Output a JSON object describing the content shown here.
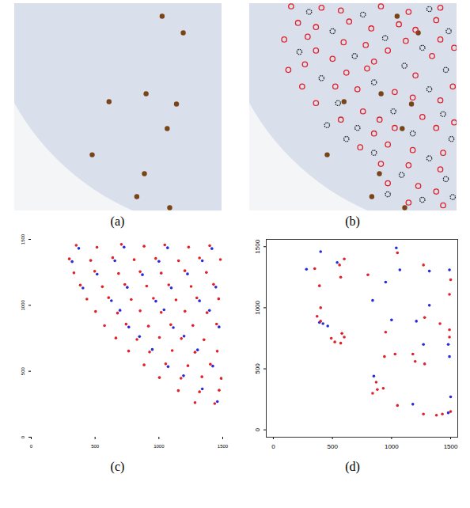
{
  "chart_data": [
    {
      "type": "scatter",
      "title": "(a)",
      "tick_labels": false,
      "xlim": [
        0,
        1500
      ],
      "ylim": [
        0,
        1500
      ],
      "series": [
        {
          "color": "#7a4419",
          "marker": "filled_circle",
          "x": [
            1067,
            1220,
            951,
            1171,
            1104,
            683,
            561,
            939,
            884,
            1122
          ],
          "y": [
            1408,
            1288,
            847,
            773,
            595,
            790,
            406,
            269,
            103,
            23
          ]
        }
      ]
    },
    {
      "type": "scatter",
      "title": "(b)",
      "tick_labels": false,
      "xlim": [
        0,
        1500
      ],
      "ylim": [
        0,
        1500
      ],
      "series": [
        {
          "color": "#7a4419",
          "marker": "filled_circle",
          "x": [
            1067,
            1220,
            951,
            1171,
            1104,
            683,
            561,
            939,
            884,
            1122
          ],
          "y": [
            1408,
            1288,
            847,
            773,
            595,
            790,
            406,
            269,
            103,
            23
          ]
        },
        {
          "color": "#222222",
          "marker": "open_circle",
          "x": [
            430,
            820,
            1300,
            1440,
            600,
            980,
            1250,
            360,
            760,
            1120,
            1420,
            520,
            900,
            1300,
            640,
            1040,
            1400,
            780,
            1180,
            1460,
            900,
            1300,
            1100,
            1420,
            1000,
            1250,
            1470,
            700,
            560
          ],
          "y": [
            1440,
            1420,
            1460,
            1300,
            1300,
            1250,
            1180,
            1150,
            1120,
            1050,
            1020,
            960,
            930,
            880,
            780,
            720,
            700,
            600,
            560,
            520,
            420,
            380,
            260,
            230,
            120,
            80,
            100,
            520,
            620
          ]
        },
        {
          "color": "#e0202a",
          "marker": "open_circle",
          "x": [
            300,
            520,
            660,
            950,
            1150,
            1380,
            350,
            480,
            720,
            880,
            1080,
            1200,
            1350,
            250,
            420,
            680,
            840,
            1130,
            1380,
            480,
            600,
            900,
            1000,
            1320,
            1480,
            280,
            400,
            700,
            850,
            1200,
            1470,
            380,
            620,
            780,
            1050,
            1180,
            1380,
            480,
            820,
            940,
            1250,
            1480,
            660,
            900,
            1050,
            1350,
            800,
            1000,
            1180,
            1400,
            950,
            1150,
            1380,
            1000,
            1220,
            1350,
            1150,
            1400
          ],
          "y": [
            1480,
            1470,
            1450,
            1480,
            1440,
            1470,
            1360,
            1330,
            1370,
            1320,
            1350,
            1310,
            1380,
            1240,
            1260,
            1220,
            1200,
            1230,
            1240,
            1160,
            1100,
            1080,
            1160,
            1120,
            1180,
            1020,
            1060,
            1000,
            1030,
            980,
            900,
            900,
            900,
            880,
            860,
            820,
            800,
            780,
            720,
            660,
            680,
            640,
            660,
            560,
            600,
            600,
            460,
            480,
            440,
            420,
            340,
            330,
            300,
            200,
            180,
            140,
            60,
            40
          ]
        }
      ]
    },
    {
      "type": "scatter",
      "title": "(c)",
      "xlim": [
        0,
        1500
      ],
      "ylim": [
        0,
        1500
      ],
      "xticks": [
        0,
        500,
        1000,
        1500
      ],
      "yticks": [
        0,
        500,
        1000,
        1500
      ],
      "series": [
        {
          "color": "#e0202a",
          "marker": "filled_circle",
          "x": [
            352,
            515,
            706,
            884,
            1046,
            1233,
            1398,
            298,
            466,
            638,
            806,
            975,
            1154,
            1318,
            1482,
            334,
            497,
            684,
            853,
            1018,
            1203,
            1372,
            384,
            557,
            733,
            904,
            1077,
            1252,
            1428,
            436,
            606,
            783,
            957,
            1134,
            1297,
            1468,
            504,
            676,
            853,
            1018,
            1204,
            1377,
            574,
            743,
            918,
            1093,
            1266,
            1452,
            663,
            828,
            1004,
            1176,
            1353,
            763,
            927,
            1104,
            1283,
            1457,
            884,
            1053,
            1227,
            1403,
            1004,
            1173,
            1337,
            1488,
            1152,
            1318,
            1472,
            1283,
            1437
          ],
          "y": [
            1455,
            1440,
            1462,
            1448,
            1458,
            1441,
            1452,
            1352,
            1340,
            1361,
            1346,
            1355,
            1338,
            1359,
            1347,
            1246,
            1258,
            1241,
            1255,
            1244,
            1262,
            1249,
            1153,
            1141,
            1158,
            1146,
            1155,
            1143,
            1159,
            1047,
            1058,
            1044,
            1053,
            1041,
            1056,
            1049,
            953,
            941,
            958,
            946,
            955,
            944,
            846,
            857,
            842,
            853,
            847,
            858,
            752,
            741,
            756,
            748,
            739,
            653,
            646,
            657,
            644,
            652,
            548,
            556,
            542,
            553,
            452,
            447,
            458,
            446,
            353,
            344,
            356,
            262,
            255
          ]
        },
        {
          "color": "#2a2ad8",
          "marker": "filled_circle",
          "x": [
            372,
            727,
            1068,
            1415,
            320,
            655,
            1000,
            1340,
            516,
            871,
            1224,
            405,
            752,
            1097,
            1446,
            628,
            976,
            1318,
            695,
            1040,
            1396,
            764,
            1113,
            1471,
            848,
            1197,
            948,
            1303,
            1072,
            1422,
            1193,
            1340,
            1458
          ],
          "y": [
            1432,
            1441,
            1436,
            1430,
            1331,
            1338,
            1333,
            1338,
            1236,
            1232,
            1238,
            1131,
            1136,
            1132,
            1138,
            1035,
            1031,
            1034,
            962,
            966,
            961,
            835,
            831,
            836,
            763,
            766,
            665,
            662,
            535,
            539,
            466,
            366,
            270
          ]
        }
      ]
    },
    {
      "type": "scatter",
      "title": "(d)",
      "xlim": [
        -60,
        1560
      ],
      "ylim": [
        -60,
        1560
      ],
      "xticks": [
        0,
        500,
        1000,
        1500
      ],
      "yticks": [
        0,
        500,
        1000,
        1500
      ],
      "series": [
        {
          "color": "#2a2ad8",
          "marker": "filled_circle",
          "x": [
            280,
            400,
            540,
            1040,
            1070,
            950,
            1320,
            1490,
            390,
            420,
            460,
            840,
            1000,
            1210,
            1320,
            1480,
            1490,
            1270,
            850,
            1180,
            1500,
            1480
          ],
          "y": [
            1315,
            1460,
            1370,
            1490,
            1310,
            1210,
            1300,
            1310,
            880,
            870,
            850,
            1060,
            900,
            890,
            1020,
            700,
            600,
            700,
            440,
            210,
            270,
            140
          ]
        },
        {
          "color": "#e0202a",
          "marker": "filled_circle",
          "x": [
            350,
            390,
            560,
            600,
            570,
            1050,
            1270,
            1500,
            1490,
            800,
            400,
            370,
            400,
            580,
            490,
            520,
            570,
            600,
            950,
            940,
            1030,
            1180,
            1200,
            1280,
            1410,
            1490,
            1490,
            870,
            880,
            930,
            840,
            1050,
            1270,
            1380,
            1430,
            1500,
            1280
          ],
          "y": [
            1320,
            1180,
            1350,
            1400,
            1250,
            1450,
            1350,
            1230,
            1110,
            1270,
            1000,
            930,
            890,
            790,
            750,
            720,
            710,
            760,
            800,
            600,
            620,
            620,
            560,
            920,
            870,
            820,
            760,
            390,
            330,
            340,
            300,
            200,
            130,
            120,
            130,
            150,
            540
          ]
        }
      ]
    }
  ]
}
